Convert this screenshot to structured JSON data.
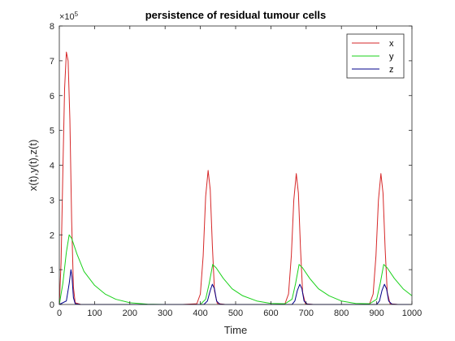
{
  "chart_data": {
    "type": "line",
    "title": "persistence of residual tumour cells",
    "xlabel": "Time",
    "ylabel": "x(t),y(t),z(t)",
    "xlim": [
      0,
      1000
    ],
    "ylim": [
      0,
      800000
    ],
    "y_exponent_label": "×10",
    "y_exponent_power": "5",
    "x_ticks": [
      0,
      100,
      200,
      300,
      400,
      500,
      600,
      700,
      800,
      900,
      1000
    ],
    "y_ticks": [
      0,
      100000,
      200000,
      300000,
      400000,
      500000,
      600000,
      700000,
      800000
    ],
    "x_tick_labels": [
      "0",
      "100",
      "200",
      "300",
      "400",
      "500",
      "600",
      "700",
      "800",
      "900",
      "1000"
    ],
    "y_tick_labels": [
      "0",
      "1",
      "2",
      "3",
      "4",
      "5",
      "6",
      "7",
      "8"
    ],
    "grid": false,
    "legend_position": "top-right",
    "series": [
      {
        "name": "x",
        "color": "#d62728",
        "points": [
          [
            0,
            0
          ],
          [
            5,
            120000
          ],
          [
            10,
            380000
          ],
          [
            15,
            620000
          ],
          [
            20,
            725000
          ],
          [
            25,
            700000
          ],
          [
            30,
            530000
          ],
          [
            35,
            240000
          ],
          [
            40,
            50000
          ],
          [
            45,
            5000
          ],
          [
            60,
            300
          ],
          [
            100,
            0
          ],
          [
            350,
            0
          ],
          [
            390,
            2000
          ],
          [
            400,
            30000
          ],
          [
            408,
            140000
          ],
          [
            415,
            310000
          ],
          [
            422,
            385000
          ],
          [
            428,
            330000
          ],
          [
            434,
            170000
          ],
          [
            440,
            40000
          ],
          [
            448,
            3000
          ],
          [
            470,
            0
          ],
          [
            610,
            0
          ],
          [
            640,
            2000
          ],
          [
            650,
            30000
          ],
          [
            658,
            140000
          ],
          [
            665,
            300000
          ],
          [
            672,
            376000
          ],
          [
            678,
            320000
          ],
          [
            684,
            160000
          ],
          [
            690,
            35000
          ],
          [
            698,
            2000
          ],
          [
            720,
            0
          ],
          [
            850,
            0
          ],
          [
            880,
            2000
          ],
          [
            890,
            30000
          ],
          [
            898,
            140000
          ],
          [
            905,
            300000
          ],
          [
            912,
            376000
          ],
          [
            918,
            320000
          ],
          [
            924,
            160000
          ],
          [
            930,
            35000
          ],
          [
            938,
            2000
          ],
          [
            960,
            0
          ],
          [
            1000,
            0
          ]
        ]
      },
      {
        "name": "y",
        "color": "#1ad11a",
        "points": [
          [
            0,
            0
          ],
          [
            10,
            60000
          ],
          [
            20,
            150000
          ],
          [
            28,
            200000
          ],
          [
            35,
            190000
          ],
          [
            50,
            145000
          ],
          [
            70,
            95000
          ],
          [
            100,
            55000
          ],
          [
            130,
            30000
          ],
          [
            160,
            15000
          ],
          [
            200,
            5000
          ],
          [
            250,
            1000
          ],
          [
            300,
            0
          ],
          [
            400,
            0
          ],
          [
            415,
            15000
          ],
          [
            425,
            60000
          ],
          [
            435,
            115000
          ],
          [
            445,
            105000
          ],
          [
            465,
            75000
          ],
          [
            490,
            45000
          ],
          [
            520,
            25000
          ],
          [
            560,
            10000
          ],
          [
            600,
            3000
          ],
          [
            640,
            2000
          ],
          [
            660,
            15000
          ],
          [
            670,
            60000
          ],
          [
            680,
            115000
          ],
          [
            690,
            105000
          ],
          [
            710,
            75000
          ],
          [
            735,
            45000
          ],
          [
            765,
            25000
          ],
          [
            800,
            10000
          ],
          [
            840,
            3000
          ],
          [
            880,
            2000
          ],
          [
            900,
            15000
          ],
          [
            910,
            60000
          ],
          [
            920,
            115000
          ],
          [
            930,
            105000
          ],
          [
            950,
            75000
          ],
          [
            975,
            45000
          ],
          [
            1000,
            25000
          ]
        ]
      },
      {
        "name": "z",
        "color": "#00008b",
        "points": [
          [
            0,
            0
          ],
          [
            20,
            10000
          ],
          [
            28,
            60000
          ],
          [
            33,
            100000
          ],
          [
            36,
            80000
          ],
          [
            40,
            20000
          ],
          [
            45,
            2000
          ],
          [
            60,
            0
          ],
          [
            410,
            0
          ],
          [
            420,
            10000
          ],
          [
            428,
            40000
          ],
          [
            434,
            58000
          ],
          [
            440,
            45000
          ],
          [
            446,
            10000
          ],
          [
            455,
            1000
          ],
          [
            470,
            0
          ],
          [
            660,
            0
          ],
          [
            668,
            10000
          ],
          [
            675,
            40000
          ],
          [
            682,
            58000
          ],
          [
            688,
            45000
          ],
          [
            694,
            10000
          ],
          [
            703,
            1000
          ],
          [
            720,
            0
          ],
          [
            900,
            0
          ],
          [
            908,
            10000
          ],
          [
            915,
            40000
          ],
          [
            922,
            58000
          ],
          [
            928,
            45000
          ],
          [
            934,
            10000
          ],
          [
            943,
            1000
          ],
          [
            960,
            0
          ],
          [
            1000,
            0
          ]
        ]
      }
    ]
  }
}
